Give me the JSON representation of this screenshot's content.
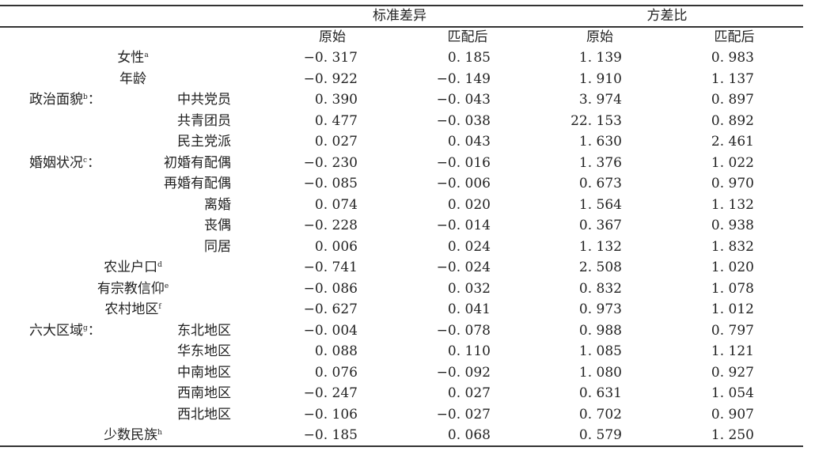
{
  "headers": {
    "group1": "标准差异",
    "group2": "方差比",
    "sub": [
      "原始",
      "匹配后",
      "原始",
      "匹配后"
    ]
  },
  "rows": [
    {
      "group": "",
      "label": "女性",
      "sup": "a",
      "values": [
        "−0. 317",
        "0. 185",
        "1. 139",
        "0. 983"
      ]
    },
    {
      "group": "",
      "label": "年龄",
      "sup": "",
      "values": [
        "−0. 922",
        "−0. 149",
        "1. 910",
        "1. 137"
      ]
    },
    {
      "group": "政治面貌",
      "group_sup": "b",
      "label": "中共党员",
      "values": [
        "0. 390",
        "−0. 043",
        "3. 974",
        "0. 897"
      ]
    },
    {
      "label": "共青团员",
      "values": [
        "0. 477",
        "−0. 038",
        "22. 153",
        "0. 892"
      ]
    },
    {
      "label": "民主党派",
      "values": [
        "0. 027",
        "0. 043",
        "1. 630",
        "2. 461"
      ]
    },
    {
      "group": "婚姻状况",
      "group_sup": "c",
      "label": "初婚有配偶",
      "values": [
        "−0. 230",
        "−0. 016",
        "1. 376",
        "1. 022"
      ]
    },
    {
      "label": "再婚有配偶",
      "values": [
        "−0. 085",
        "−0. 006",
        "0. 673",
        "0. 970"
      ]
    },
    {
      "label": "离婚",
      "values": [
        "0. 074",
        "0. 020",
        "1. 564",
        "1. 132"
      ]
    },
    {
      "label": "丧偶",
      "values": [
        "−0. 228",
        "−0. 014",
        "0. 367",
        "0. 938"
      ]
    },
    {
      "label": "同居",
      "values": [
        "0. 006",
        "0. 024",
        "1. 132",
        "1. 832"
      ]
    },
    {
      "group": "",
      "label": "农业户口",
      "sup": "d",
      "values": [
        "−0. 741",
        "−0. 024",
        "2. 508",
        "1. 020"
      ]
    },
    {
      "group": "",
      "label": "有宗教信仰",
      "sup": "e",
      "values": [
        "−0. 086",
        "0. 032",
        "0. 832",
        "1. 078"
      ]
    },
    {
      "group": "",
      "label": "农村地区",
      "sup": "f",
      "values": [
        "−0. 627",
        "0. 041",
        "0. 973",
        "1. 012"
      ]
    },
    {
      "group": "六大区域",
      "group_sup": "g",
      "label": "东北地区",
      "values": [
        "−0. 004",
        "−0. 078",
        "0. 988",
        "0. 797"
      ]
    },
    {
      "label": "华东地区",
      "values": [
        "0. 088",
        "0. 110",
        "1. 085",
        "1. 121"
      ]
    },
    {
      "label": "中南地区",
      "values": [
        "0. 076",
        "−0. 092",
        "1. 080",
        "0. 927"
      ]
    },
    {
      "label": "西南地区",
      "values": [
        "−0. 247",
        "0. 027",
        "0. 631",
        "1. 054"
      ]
    },
    {
      "label": "西北地区",
      "values": [
        "−0. 106",
        "−0. 027",
        "0. 702",
        "0. 907"
      ]
    },
    {
      "group": "",
      "label": "少数民族",
      "sup": "h",
      "values": [
        "−0. 185",
        "0. 068",
        "0. 579",
        "1. 250"
      ]
    }
  ],
  "colon": "："
}
